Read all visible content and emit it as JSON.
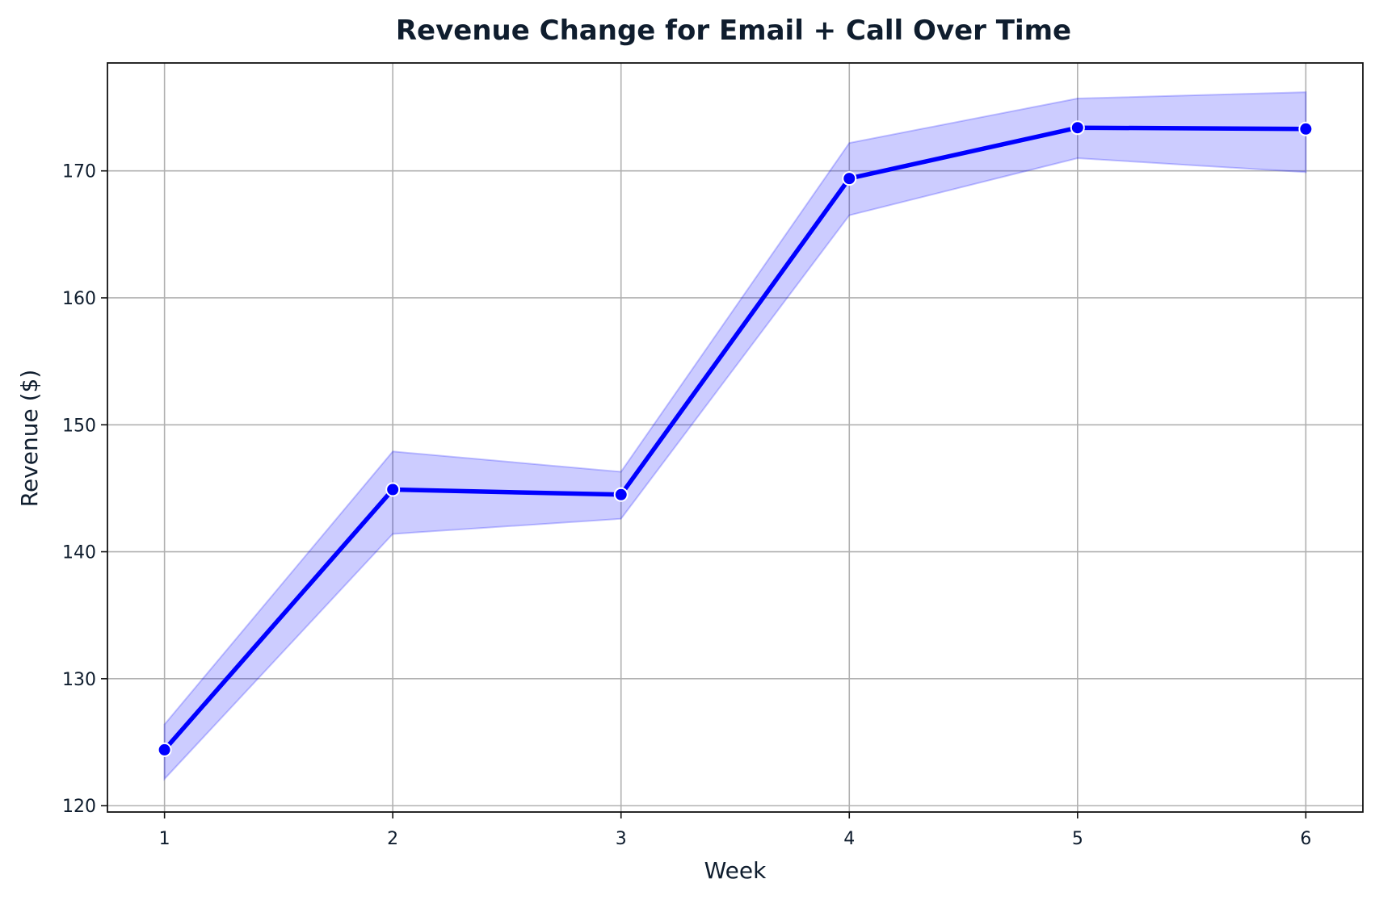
{
  "chart_data": {
    "type": "line",
    "title": "Revenue Change for Email + Call  Over Time",
    "xlabel": "Week",
    "ylabel": "Revenue ($)",
    "x": [
      1,
      2,
      3,
      4,
      5,
      6
    ],
    "xlim": [
      0.75,
      6.25
    ],
    "ylim": [
      119.5,
      178.5
    ],
    "xticks": [
      1,
      2,
      3,
      4,
      5,
      6
    ],
    "yticks": [
      120,
      130,
      140,
      150,
      160,
      170
    ],
    "grid": true,
    "series": [
      {
        "values": [
          124.4,
          144.9,
          144.5,
          169.4,
          173.4,
          173.3
        ],
        "ci_lower": [
          122.1,
          141.4,
          142.6,
          166.5,
          171.0,
          169.9
        ],
        "ci_upper": [
          126.4,
          147.9,
          146.3,
          172.2,
          175.7,
          176.2
        ],
        "color": "#0000ff",
        "band_color": "#0000ff",
        "marker": "circle"
      }
    ]
  }
}
